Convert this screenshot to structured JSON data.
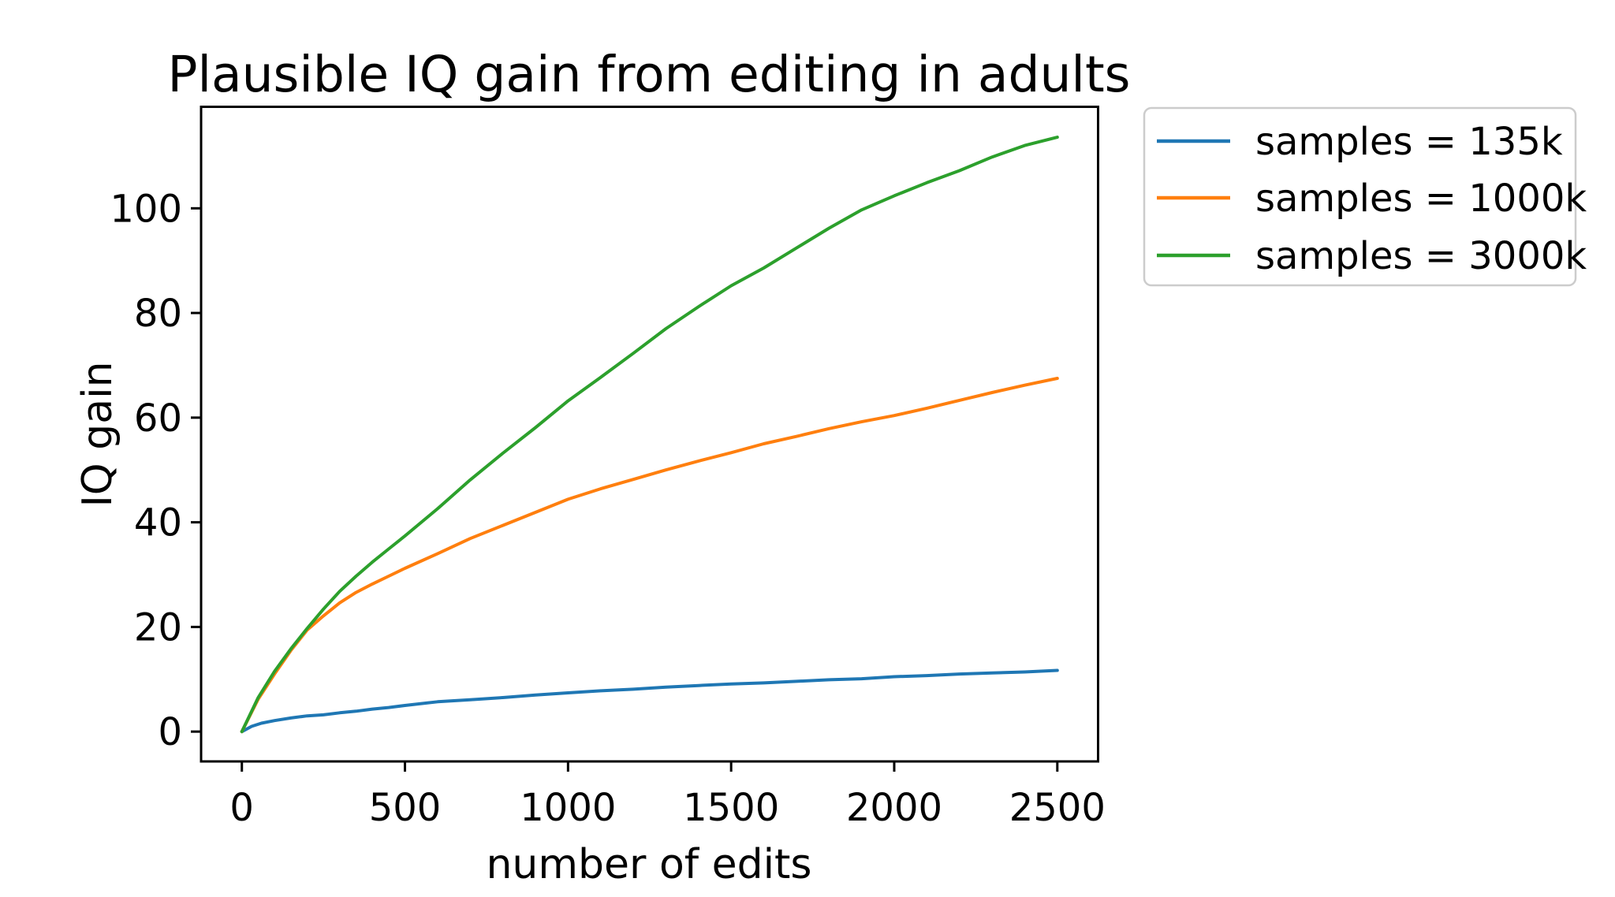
{
  "figure": {
    "background": "#ffffff",
    "axis_color": "#000000",
    "legend_border_color": "#cccccc"
  },
  "chart_data": {
    "type": "line",
    "title": "Plausible IQ gain from editing in adults",
    "xlabel": "number of edits",
    "ylabel": "IQ gain",
    "xlim": [
      -125,
      2625
    ],
    "ylim": [
      -5.7,
      119.4
    ],
    "xticks": [
      0,
      500,
      1000,
      1500,
      2000,
      2500
    ],
    "yticks": [
      0,
      20,
      40,
      60,
      80,
      100
    ],
    "grid": false,
    "legend_position": "outside-right",
    "series": [
      {
        "name": "samples = 135k",
        "color": "#1f77b4",
        "points": [
          [
            0,
            0
          ],
          [
            30,
            1.0
          ],
          [
            60,
            1.6
          ],
          [
            100,
            2.1
          ],
          [
            150,
            2.6
          ],
          [
            200,
            3.0
          ],
          [
            250,
            3.2
          ],
          [
            300,
            3.6
          ],
          [
            350,
            3.9
          ],
          [
            400,
            4.3
          ],
          [
            450,
            4.6
          ],
          [
            500,
            5.0
          ],
          [
            600,
            5.7
          ],
          [
            700,
            6.1
          ],
          [
            800,
            6.5
          ],
          [
            900,
            7.0
          ],
          [
            1000,
            7.4
          ],
          [
            1100,
            7.8
          ],
          [
            1200,
            8.1
          ],
          [
            1300,
            8.5
          ],
          [
            1400,
            8.8
          ],
          [
            1500,
            9.1
          ],
          [
            1600,
            9.3
          ],
          [
            1700,
            9.6
          ],
          [
            1800,
            9.9
          ],
          [
            1900,
            10.1
          ],
          [
            2000,
            10.5
          ],
          [
            2100,
            10.7
          ],
          [
            2200,
            11.0
          ],
          [
            2300,
            11.2
          ],
          [
            2400,
            11.4
          ],
          [
            2500,
            11.7
          ]
        ]
      },
      {
        "name": "samples = 1000k",
        "color": "#ff7f0e",
        "points": [
          [
            0,
            0
          ],
          [
            50,
            6.2
          ],
          [
            100,
            11.0
          ],
          [
            150,
            15.5
          ],
          [
            200,
            19.4
          ],
          [
            250,
            22.1
          ],
          [
            300,
            24.6
          ],
          [
            350,
            26.6
          ],
          [
            400,
            28.2
          ],
          [
            450,
            29.7
          ],
          [
            500,
            31.2
          ],
          [
            600,
            34.0
          ],
          [
            700,
            36.9
          ],
          [
            800,
            39.4
          ],
          [
            900,
            41.9
          ],
          [
            1000,
            44.4
          ],
          [
            1100,
            46.4
          ],
          [
            1200,
            48.2
          ],
          [
            1300,
            50.0
          ],
          [
            1400,
            51.7
          ],
          [
            1500,
            53.3
          ],
          [
            1600,
            55.0
          ],
          [
            1700,
            56.4
          ],
          [
            1800,
            57.9
          ],
          [
            1900,
            59.2
          ],
          [
            2000,
            60.4
          ],
          [
            2100,
            61.8
          ],
          [
            2200,
            63.3
          ],
          [
            2300,
            64.8
          ],
          [
            2400,
            66.2
          ],
          [
            2500,
            67.5
          ]
        ]
      },
      {
        "name": "samples = 3000k",
        "color": "#2ca02c",
        "points": [
          [
            0,
            0
          ],
          [
            50,
            6.5
          ],
          [
            100,
            11.5
          ],
          [
            150,
            15.8
          ],
          [
            200,
            19.7
          ],
          [
            250,
            23.4
          ],
          [
            300,
            26.8
          ],
          [
            350,
            29.7
          ],
          [
            400,
            32.4
          ],
          [
            450,
            34.9
          ],
          [
            500,
            37.4
          ],
          [
            600,
            42.6
          ],
          [
            700,
            48.1
          ],
          [
            800,
            53.2
          ],
          [
            900,
            58.1
          ],
          [
            1000,
            63.2
          ],
          [
            1100,
            67.7
          ],
          [
            1200,
            72.3
          ],
          [
            1300,
            77.0
          ],
          [
            1400,
            81.2
          ],
          [
            1500,
            85.2
          ],
          [
            1600,
            88.6
          ],
          [
            1700,
            92.4
          ],
          [
            1800,
            96.2
          ],
          [
            1900,
            99.7
          ],
          [
            2000,
            102.4
          ],
          [
            2100,
            104.9
          ],
          [
            2200,
            107.2
          ],
          [
            2300,
            109.8
          ],
          [
            2400,
            112.0
          ],
          [
            2500,
            113.6
          ]
        ]
      }
    ],
    "legend_order": [
      "samples = 135k",
      "samples = 1000k",
      "samples = 3000k"
    ]
  }
}
